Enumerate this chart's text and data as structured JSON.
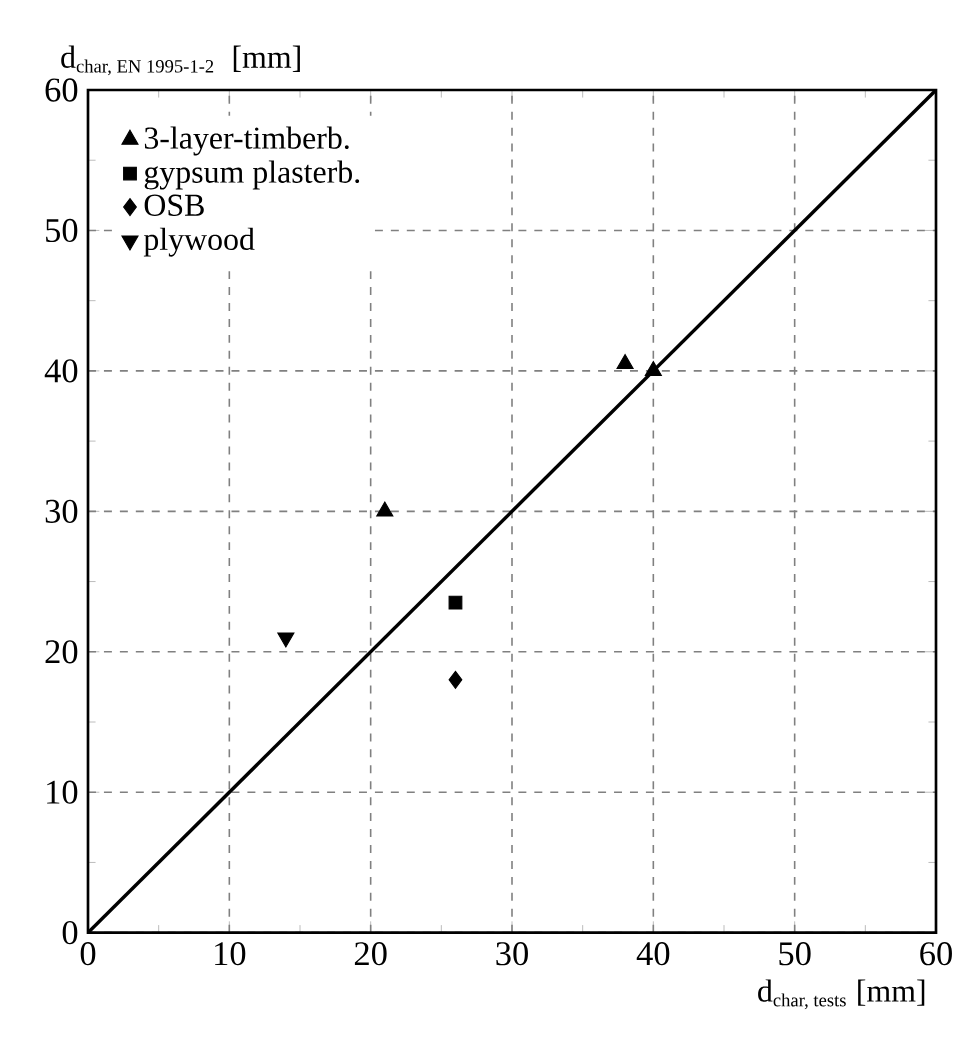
{
  "chart_data": {
    "type": "scatter",
    "xlabel": "\\mbox{d}_{\\mbox{\\scriptsize char, tests}}\\ \\mbox{[mm]}",
    "ylabel": "\\mbox{d}_{\\mbox{\\scriptsize char, EN 1995-1-2}}\\ \\ \\mbox{[mm]}",
    "xlim": [
      0,
      60
    ],
    "ylim": [
      0,
      60
    ],
    "xticks": [
      0,
      10,
      20,
      30,
      40,
      50,
      60
    ],
    "yticks": [
      0,
      10,
      20,
      30,
      40,
      50,
      60
    ],
    "grid": true,
    "legend": "top left",
    "series": [
      {
        "name": "3-layer-timberb.",
        "color": "#000000",
        "marker": "triangle",
        "x": [
          21,
          38,
          40
        ],
        "values": [
          30,
          40.5,
          40
        ]
      },
      {
        "name": "gypsum plasterb.",
        "color": "#000000",
        "marker": "square",
        "x": [
          26
        ],
        "values": [
          23.5
        ]
      },
      {
        "name": "OSB",
        "color": "#000000",
        "marker": "diamond",
        "x": [
          26
        ],
        "values": [
          18
        ]
      },
      {
        "name": "plywood",
        "color": "#000000",
        "marker": "triangle-down",
        "x": [
          14
        ],
        "values": [
          21
        ]
      },
      {
        "type": "line",
        "color": "#000000",
        "marker": "none",
        "x": [
          0,
          60
        ],
        "values": [
          0,
          60
        ]
      }
    ]
  }
}
